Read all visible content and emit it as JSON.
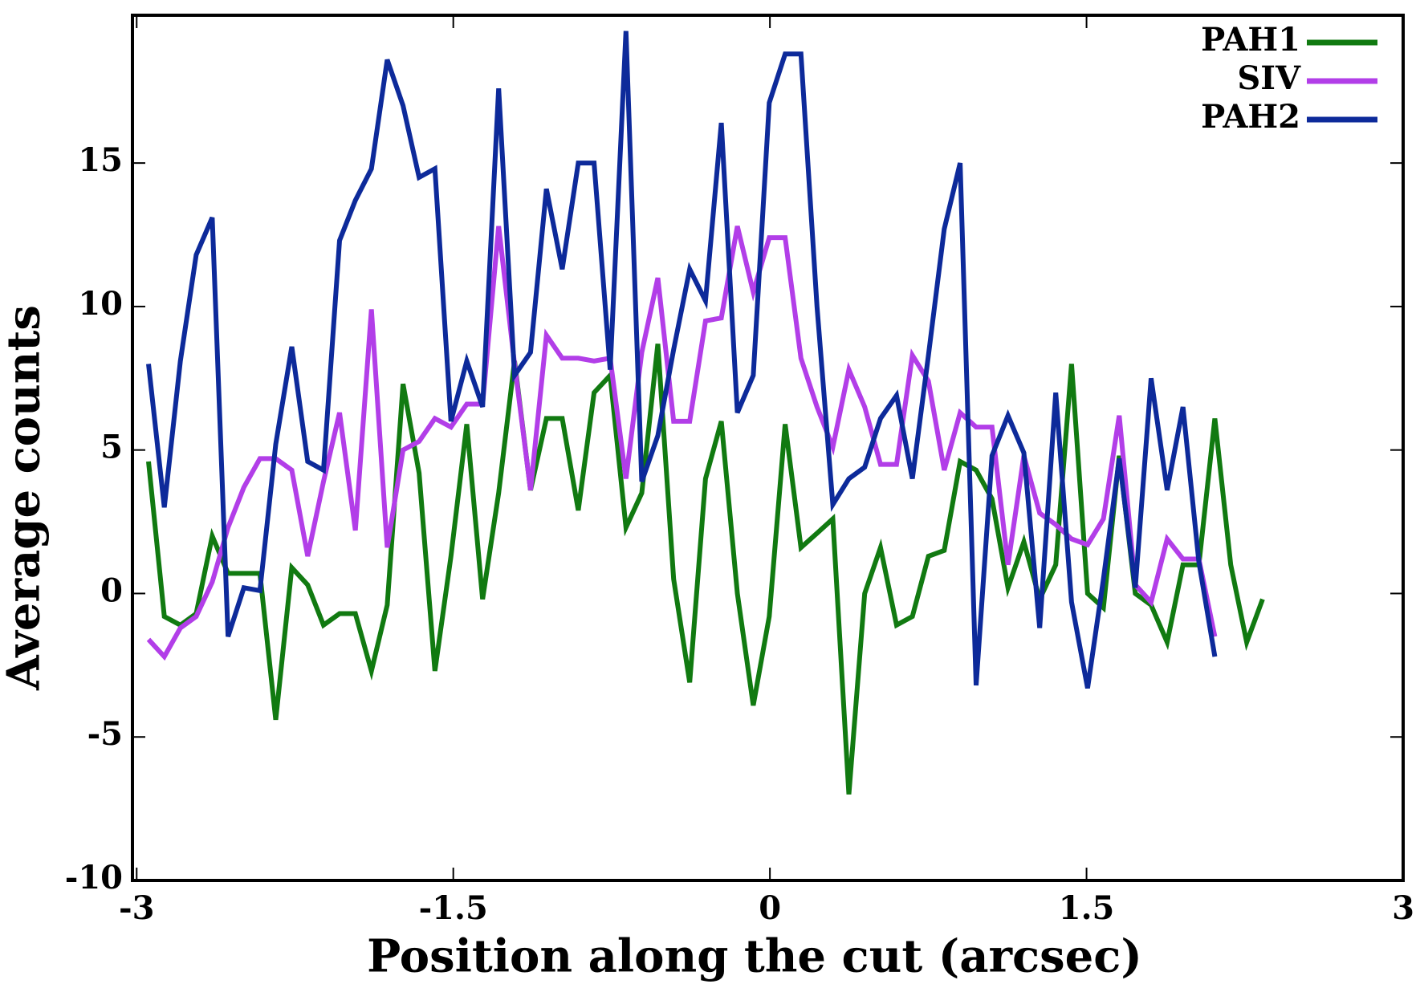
{
  "chart_data": {
    "type": "line",
    "xlabel": "Position along the cut (arcsec)",
    "ylabel": "Average counts",
    "x": [
      -2.944,
      -2.869,
      -2.793,
      -2.718,
      -2.642,
      -2.567,
      -2.492,
      -2.416,
      -2.341,
      -2.265,
      -2.19,
      -2.115,
      -2.039,
      -1.964,
      -1.888,
      -1.813,
      -1.738,
      -1.662,
      -1.587,
      -1.511,
      -1.436,
      -1.361,
      -1.285,
      -1.21,
      -1.134,
      -1.059,
      -0.984,
      -0.908,
      -0.833,
      -0.757,
      -0.682,
      -0.607,
      -0.531,
      -0.456,
      -0.38,
      -0.305,
      -0.23,
      -0.154,
      -0.079,
      -0.003,
      0.072,
      0.147,
      0.223,
      0.298,
      0.374,
      0.449,
      0.524,
      0.6,
      0.675,
      0.751,
      0.826,
      0.901,
      0.977,
      1.052,
      1.128,
      1.203,
      1.278,
      1.354,
      1.429,
      1.505,
      1.58,
      1.655,
      1.731,
      1.806,
      1.882,
      1.957,
      2.032,
      2.108,
      2.183,
      2.259,
      2.334
    ],
    "series": [
      {
        "name": "PAH1",
        "color": "#117a11",
        "values": [
          4.6,
          -0.8,
          -1.1,
          -0.7,
          2.0,
          0.7,
          0.7,
          0.7,
          -4.4,
          0.9,
          0.3,
          -1.1,
          -0.7,
          -0.7,
          -2.7,
          -0.4,
          7.3,
          4.2,
          -2.7,
          1.3,
          5.9,
          -0.2,
          3.5,
          8.1,
          3.6,
          6.1,
          6.1,
          2.9,
          7.0,
          7.6,
          2.3,
          3.5,
          8.7,
          0.5,
          -3.1,
          4.0,
          6.0,
          0.0,
          -3.9,
          -0.8,
          5.9,
          1.6,
          2.1,
          2.6,
          -7.0,
          0.0,
          1.6,
          -1.1,
          -0.8,
          1.3,
          1.5,
          4.6,
          4.3,
          3.3,
          0.2,
          1.8,
          -0.2,
          1.0,
          8.0,
          0.0,
          -0.5,
          4.8,
          0.0,
          -0.4,
          -1.7,
          1.0,
          1.0,
          6.1,
          1.0,
          -1.7,
          -0.2
        ]
      },
      {
        "name": "SIV",
        "color": "#b23ee8",
        "values": [
          -1.6,
          -2.2,
          -1.2,
          -0.8,
          0.4,
          2.3,
          3.7,
          4.7,
          4.7,
          4.3,
          1.3,
          3.9,
          6.3,
          2.2,
          9.9,
          1.6,
          5.0,
          5.3,
          6.1,
          5.8,
          6.6,
          6.6,
          12.8,
          8.0,
          3.6,
          9.0,
          8.2,
          8.2,
          8.1,
          8.2,
          4.0,
          8.4,
          11.0,
          6.0,
          6.0,
          9.5,
          9.6,
          12.8,
          10.5,
          12.4,
          12.4,
          8.2,
          6.5,
          5.1,
          7.8,
          6.5,
          4.5,
          4.5,
          8.3,
          7.4,
          4.3,
          6.3,
          5.8,
          5.8,
          1.0,
          4.8,
          2.8,
          2.4,
          1.9,
          1.7,
          2.6,
          6.2,
          0.3,
          -0.3,
          1.9,
          1.2,
          1.2,
          -1.5,
          null,
          null,
          null
        ]
      },
      {
        "name": "PAH2",
        "color": "#0d2a9a",
        "values": [
          8.0,
          3.0,
          8.1,
          11.8,
          13.1,
          -1.5,
          0.2,
          0.1,
          5.2,
          8.6,
          4.6,
          4.3,
          12.3,
          13.7,
          14.8,
          18.6,
          17.0,
          14.5,
          14.8,
          6.0,
          8.1,
          6.5,
          17.6,
          7.6,
          8.4,
          14.1,
          11.3,
          15.0,
          15.0,
          7.8,
          19.6,
          3.9,
          5.5,
          8.5,
          11.3,
          10.2,
          16.4,
          6.3,
          7.6,
          17.1,
          18.8,
          18.8,
          10.0,
          3.1,
          4.0,
          4.4,
          6.1,
          6.9,
          4.0,
          8.3,
          12.7,
          15.0,
          -3.2,
          4.8,
          6.2,
          4.9,
          -1.2,
          7.0,
          -0.3,
          -3.3,
          0.5,
          4.7,
          0.2,
          7.5,
          3.6,
          6.5,
          1.1,
          -2.2,
          null,
          null,
          null
        ]
      }
    ],
    "xlim": [
      -3.02,
      3.0
    ],
    "ylim": [
      -10,
      20.15
    ],
    "xticks": [
      -3,
      -1.5,
      0,
      1.5,
      3
    ],
    "yticks": [
      -10,
      -5,
      0,
      5,
      10,
      15
    ],
    "grid": false,
    "legend": "upper right"
  }
}
